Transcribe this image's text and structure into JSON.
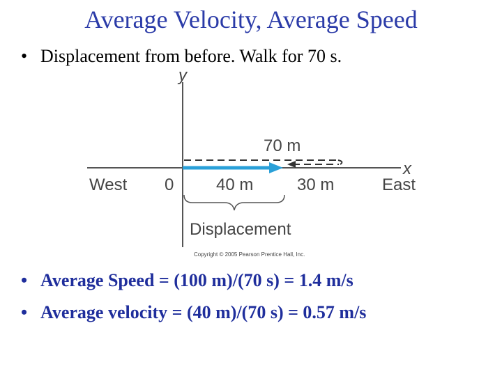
{
  "slide": {
    "title": "Average Velocity, Average Speed",
    "bullet_char": "•",
    "bullets": [
      "Displacement from before. Walk for 70 s.",
      "Average Speed = (100 m)/(70 s) = 1.4 m/s",
      "Average velocity = (40 m)/(70 s) = 0.57 m/s"
    ]
  },
  "figure": {
    "y_axis_label": "y",
    "x_axis_label": "x",
    "west_label": "West",
    "origin_label": "0",
    "east_label": "East",
    "dashed_label": "70 m",
    "blue_label": "40 m",
    "return_label": "30 m",
    "brace_label": "Displacement",
    "copyright": "Copyright © 2005 Pearson Prentice Hall, Inc.",
    "colors": {
      "arrow": "#2aa0d8",
      "axis": "#555555",
      "text": "#444444"
    }
  }
}
